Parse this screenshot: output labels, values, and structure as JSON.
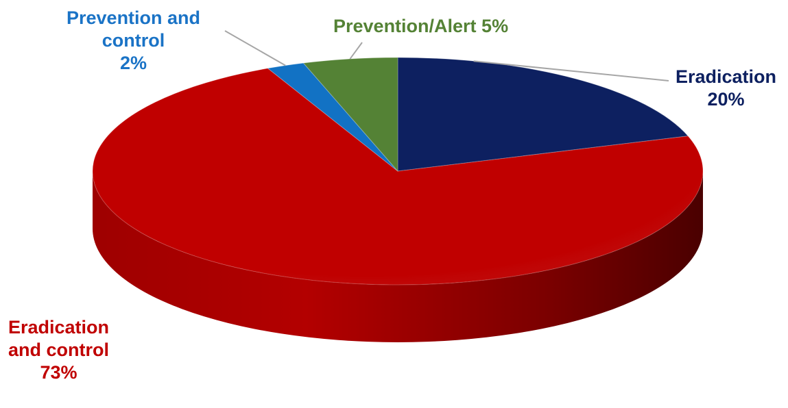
{
  "chart_data": {
    "type": "pie",
    "style": "3d",
    "title": "",
    "slices": [
      {
        "label": "Eradication",
        "value": 20,
        "value_label": "20%",
        "color": "#0d2060"
      },
      {
        "label": "Eradication and control",
        "value": 73,
        "value_label": "73%",
        "color": "#c00000"
      },
      {
        "label": "Prevention and control",
        "value": 2,
        "value_label": "2%",
        "color": "#1272c4"
      },
      {
        "label": "Prevention/Alert",
        "value": 5,
        "value_label": "5%",
        "color": "#548235"
      }
    ]
  },
  "labels": {
    "eradication": {
      "line1": "Eradication",
      "line2": "20%"
    },
    "eradication_control": {
      "line1": "Eradication",
      "line2": "and control",
      "line3": "73%"
    },
    "prevention_control": {
      "line1": "Prevention and",
      "line2": "control",
      "line3": "2%"
    },
    "prevention_alert": {
      "line1": "Prevention/Alert 5%"
    }
  },
  "colors": {
    "eradication_text": "#0d2060",
    "eradication_control_text": "#c00000",
    "prevention_control_text": "#1a73c6",
    "prevention_alert_text": "#548235",
    "leader_line": "#a6a6a6"
  }
}
